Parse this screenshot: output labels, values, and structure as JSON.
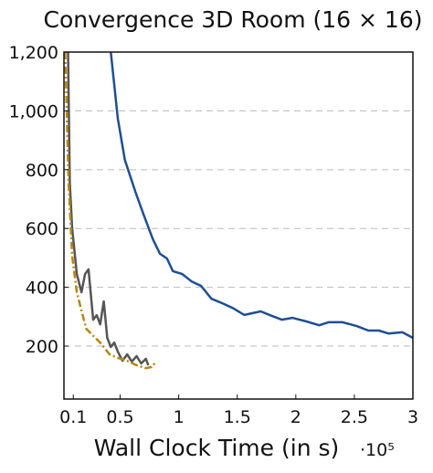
{
  "chart_data": {
    "type": "line",
    "title": "Convergence 3D Room (16 × 16)",
    "x_label": "Wall Clock Time (in s)",
    "x_multiplier": "·10⁵",
    "xlim": [
      0.02,
      3
    ],
    "xticks": [
      0.1,
      0.5,
      1,
      1.5,
      2,
      2.5,
      3
    ],
    "ylim": [
      20,
      1200
    ],
    "yticks": [
      200,
      400,
      600,
      800,
      {
        "value": 1000,
        "label": "1,000"
      },
      {
        "value": 1200,
        "label": "1,200"
      }
    ],
    "grid": true,
    "series": [
      {
        "color": "#1f4e96",
        "dash": "solid",
        "x": [
          0.42,
          0.48,
          0.54,
          0.63,
          0.7,
          0.78,
          0.84,
          0.9,
          0.95,
          1.03,
          1.11,
          1.19,
          1.28,
          1.37,
          1.46,
          1.56,
          1.7,
          1.8,
          1.88,
          1.97,
          2.09,
          2.2,
          2.28,
          2.4,
          2.52,
          2.62,
          2.71,
          2.79,
          2.91,
          3.0
        ],
        "values": [
          1200,
          973,
          833,
          725,
          647,
          563,
          514,
          498,
          455,
          445,
          420,
          405,
          361,
          346,
          330,
          306,
          318,
          302,
          290,
          296,
          284,
          271,
          281,
          281,
          268,
          253,
          253,
          243,
          247,
          228
        ]
      },
      {
        "color": "#555555",
        "dash": "solid",
        "x": [
          0.055,
          0.07,
          0.09,
          0.13,
          0.17,
          0.2,
          0.23,
          0.27,
          0.3,
          0.33,
          0.36,
          0.39,
          0.42,
          0.45,
          0.48,
          0.52,
          0.56,
          0.6,
          0.64,
          0.68,
          0.72,
          0.74
        ],
        "values": [
          1200,
          756,
          600,
          445,
          383,
          445,
          461,
          290,
          305,
          274,
          352,
          228,
          197,
          212,
          181,
          150,
          172,
          147,
          166,
          141,
          157,
          135
        ]
      },
      {
        "color": "#b8860b",
        "dash": "dashdot",
        "x": [
          0.03,
          0.06,
          0.09,
          0.13,
          0.17,
          0.21,
          0.25,
          0.33,
          0.41,
          0.48,
          0.56,
          0.64,
          0.72,
          0.77,
          0.8
        ],
        "values": [
          1200,
          756,
          507,
          383,
          321,
          259,
          243,
          212,
          172,
          160,
          150,
          135,
          125,
          129,
          144
        ]
      }
    ]
  }
}
